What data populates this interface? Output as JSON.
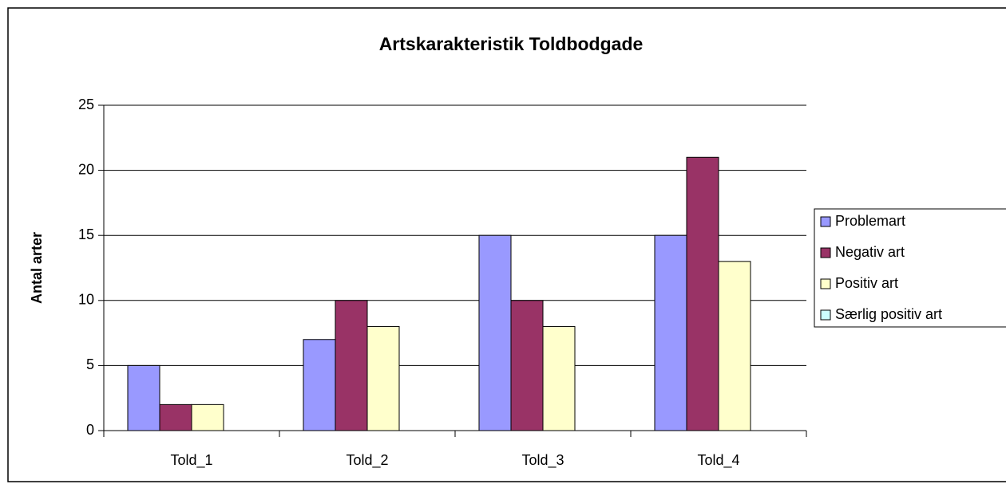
{
  "chart_data": {
    "type": "bar",
    "title": "Artskarakteristik Toldbodgade",
    "y_label": "Antal arter",
    "categories": [
      "Told_1",
      "Told_2",
      "Told_3",
      "Told_4"
    ],
    "series": [
      {
        "name": "Problemart",
        "color": "#9999ff",
        "values": [
          5,
          7,
          15,
          15
        ]
      },
      {
        "name": "Negativ art",
        "color": "#993366",
        "values": [
          2,
          10,
          10,
          21
        ]
      },
      {
        "name": "Positiv art",
        "color": "#ffffcc",
        "values": [
          2,
          8,
          8,
          13
        ]
      },
      {
        "name": "Særlig positiv art",
        "color": "#ccffff",
        "values": [
          0,
          0,
          0,
          0
        ]
      }
    ],
    "ylim": [
      0,
      25
    ],
    "yticks": [
      0,
      5,
      10,
      15,
      20,
      25
    ],
    "grid": true,
    "legend": "right"
  }
}
